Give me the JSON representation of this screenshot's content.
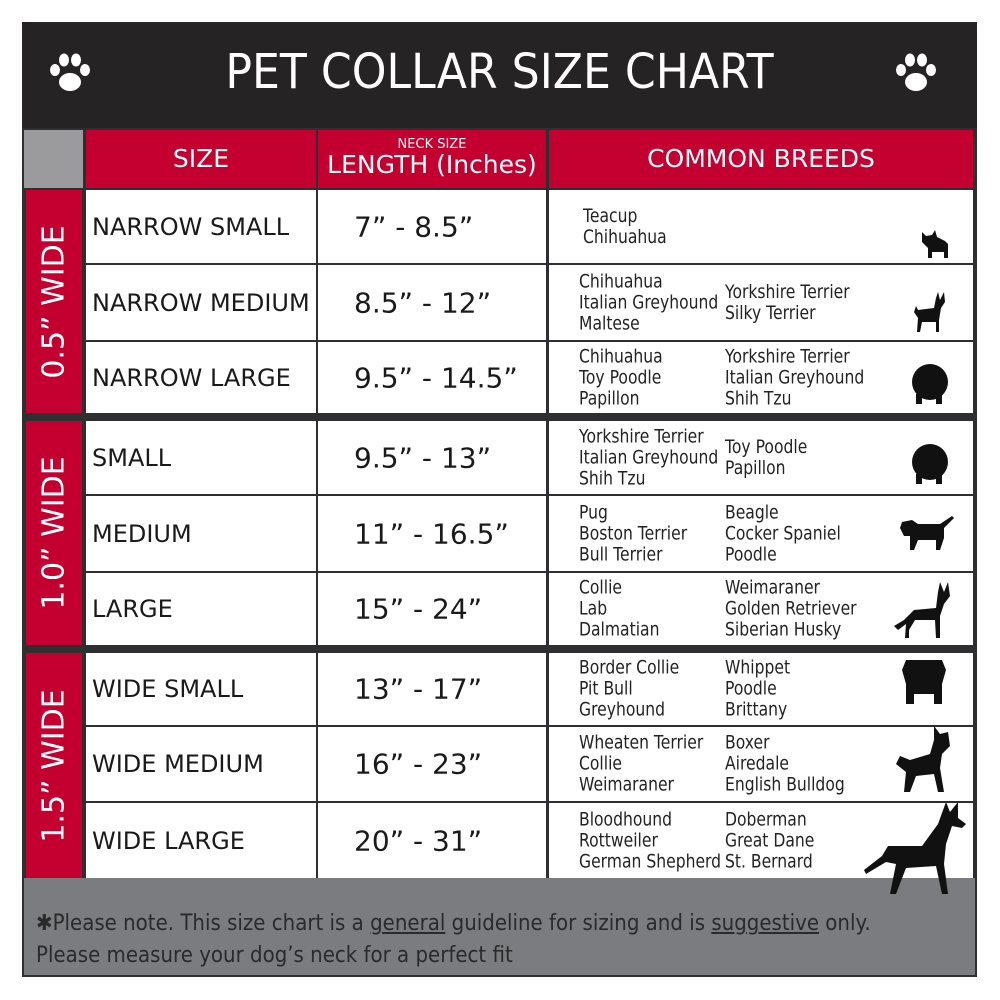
{
  "title": "PET COLLAR SIZE CHART",
  "icons": {
    "left": "paw-print-icon",
    "right": "paw-print-icon"
  },
  "colors": {
    "header_bg": "#252324",
    "accent_red": "#c3002f",
    "footer_bg": "#7b7c80",
    "label_gray": "#9b9b9e"
  },
  "columns": {
    "size": "SIZE",
    "length_small": "NECK SIZE",
    "length": "LENGTH (Inches)",
    "breeds": "COMMON BREEDS"
  },
  "groups": [
    {
      "label": "0.5” WIDE",
      "rows": [
        {
          "size": "NARROW SMALL",
          "length": "7” - 8.5”",
          "breeds1": [
            "Teacup",
            "Chihuahua"
          ],
          "breeds2": [],
          "dog_icon": "yorkie-silhouette-icon"
        },
        {
          "size": "NARROW MEDIUM",
          "length": "8.5” - 12”",
          "breeds1": [
            "Chihuahua",
            "Italian Greyhound",
            "Maltese"
          ],
          "breeds2": [
            "Yorkshire Terrier",
            "Silky Terrier"
          ],
          "dog_icon": "chihuahua-silhouette-icon"
        },
        {
          "size": "NARROW LARGE",
          "length": "9.5” - 14.5”",
          "breeds1": [
            "Chihuahua",
            "Toy Poodle",
            "Papillon"
          ],
          "breeds2": [
            "Yorkshire Terrier",
            "Italian Greyhound",
            "Shih Tzu"
          ],
          "dog_icon": "pomeranian-silhouette-icon"
        }
      ]
    },
    {
      "label": "1.0” WIDE",
      "rows": [
        {
          "size": "SMALL",
          "length": "9.5” - 13”",
          "breeds1": [
            "Yorkshire Terrier",
            "Italian Greyhound",
            "Shih Tzu"
          ],
          "breeds2": [
            "Toy Poodle",
            "Papillon"
          ],
          "dog_icon": "pomeranian-silhouette-icon"
        },
        {
          "size": "MEDIUM",
          "length": "11” - 16.5”",
          "breeds1": [
            "Pug",
            "Boston Terrier",
            "Bull Terrier"
          ],
          "breeds2": [
            "Beagle",
            "Cocker Spaniel",
            "Poodle"
          ],
          "dog_icon": "spaniel-silhouette-icon"
        },
        {
          "size": "LARGE",
          "length": "15” - 24”",
          "breeds1": [
            "Collie",
            "Lab",
            "Dalmatian"
          ],
          "breeds2": [
            "Weimaraner",
            "Golden Retriever",
            "Siberian Husky"
          ],
          "dog_icon": "shepherd-silhouette-icon"
        }
      ]
    },
    {
      "label": "1.5” WIDE",
      "rows": [
        {
          "size": "WIDE SMALL",
          "length": "13” - 17”",
          "breeds1": [
            "Border Collie",
            "Pit Bull",
            "Greyhound"
          ],
          "breeds2": [
            "Whippet",
            "Poodle",
            "Brittany"
          ],
          "dog_icon": "bulldog-silhouette-icon"
        },
        {
          "size": "WIDE MEDIUM",
          "length": "16” - 23”",
          "breeds1": [
            "Wheaten Terrier",
            "Collie",
            "Weimaraner"
          ],
          "breeds2": [
            "Boxer",
            "Airedale",
            "English Bulldog"
          ],
          "dog_icon": "pitbull-silhouette-icon"
        },
        {
          "size": "WIDE LARGE",
          "length": "20” - 31”",
          "breeds1": [
            "Bloodhound",
            "Rottweiler",
            "German Shepherd"
          ],
          "breeds2": [
            "Doberman",
            "Great Dane",
            "St. Bernard"
          ],
          "dog_icon": "doberman-silhouette-icon"
        }
      ]
    }
  ],
  "footer": {
    "note_start": "✱Please note. This size chart is a",
    "note_general": "general",
    "note_mid": " guideline for sizing and is",
    "note_suggestive": "suggestive",
    "note_end": " only.",
    "note_line2": "Please measure your dog’s neck for a perfect fit"
  }
}
